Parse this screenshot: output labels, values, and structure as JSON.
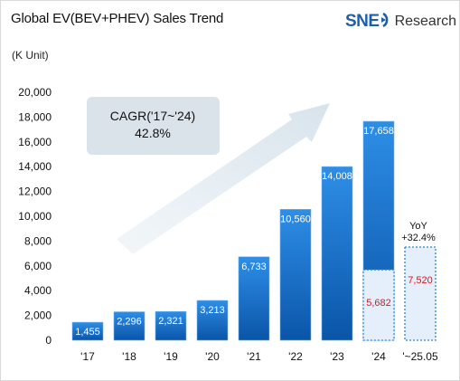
{
  "header": {
    "title": "Global EV(BEV+PHEV) Sales Trend",
    "unit": "(K Unit)"
  },
  "logo": {
    "brand": "SNE",
    "text": "Research",
    "icon": "ring-arrow-icon"
  },
  "colors": {
    "bar_top": "#2e8ee6",
    "bar_bottom": "#0a55a8",
    "bar_edge": "#6fb3f0",
    "projection_fill": "#e4effb",
    "projection_border": "#2a84d8",
    "red_label": "#e0141e",
    "arrow": "#dce7ef",
    "callout": "#dbe3ea"
  },
  "chart_data": {
    "type": "bar",
    "categories": [
      "'17",
      "'18",
      "'19",
      "'20",
      "'21",
      "'22",
      "'23",
      "'24",
      "'~25.05"
    ],
    "values": [
      1455,
      2296,
      2321,
      3213,
      6733,
      10560,
      14008,
      17658,
      null
    ],
    "value_labels": [
      "1,455",
      "2,296",
      "2,321",
      "3,213",
      "6,733",
      "10,560",
      "14,008",
      "17,658",
      ""
    ],
    "partial_segments": [
      {
        "category": "'24",
        "value": 5682,
        "label": "5,682"
      },
      {
        "category": "'~25.05",
        "value": 7520,
        "label": "7,520"
      }
    ],
    "ylim": [
      0,
      20000
    ],
    "yticks": [
      0,
      2000,
      4000,
      6000,
      8000,
      10000,
      12000,
      14000,
      16000,
      18000,
      20000
    ],
    "ytick_labels": [
      "0",
      "2,000",
      "4,000",
      "6,000",
      "8,000",
      "10,000",
      "12,000",
      "14,000",
      "16,000",
      "18,000",
      "20,000"
    ],
    "grid": false,
    "annotations": {
      "cagr_line1": "CAGR('17~'24)",
      "cagr_line2": "42.8%",
      "yoy_line1": "YoY",
      "yoy_line2": "+32.4%"
    }
  }
}
